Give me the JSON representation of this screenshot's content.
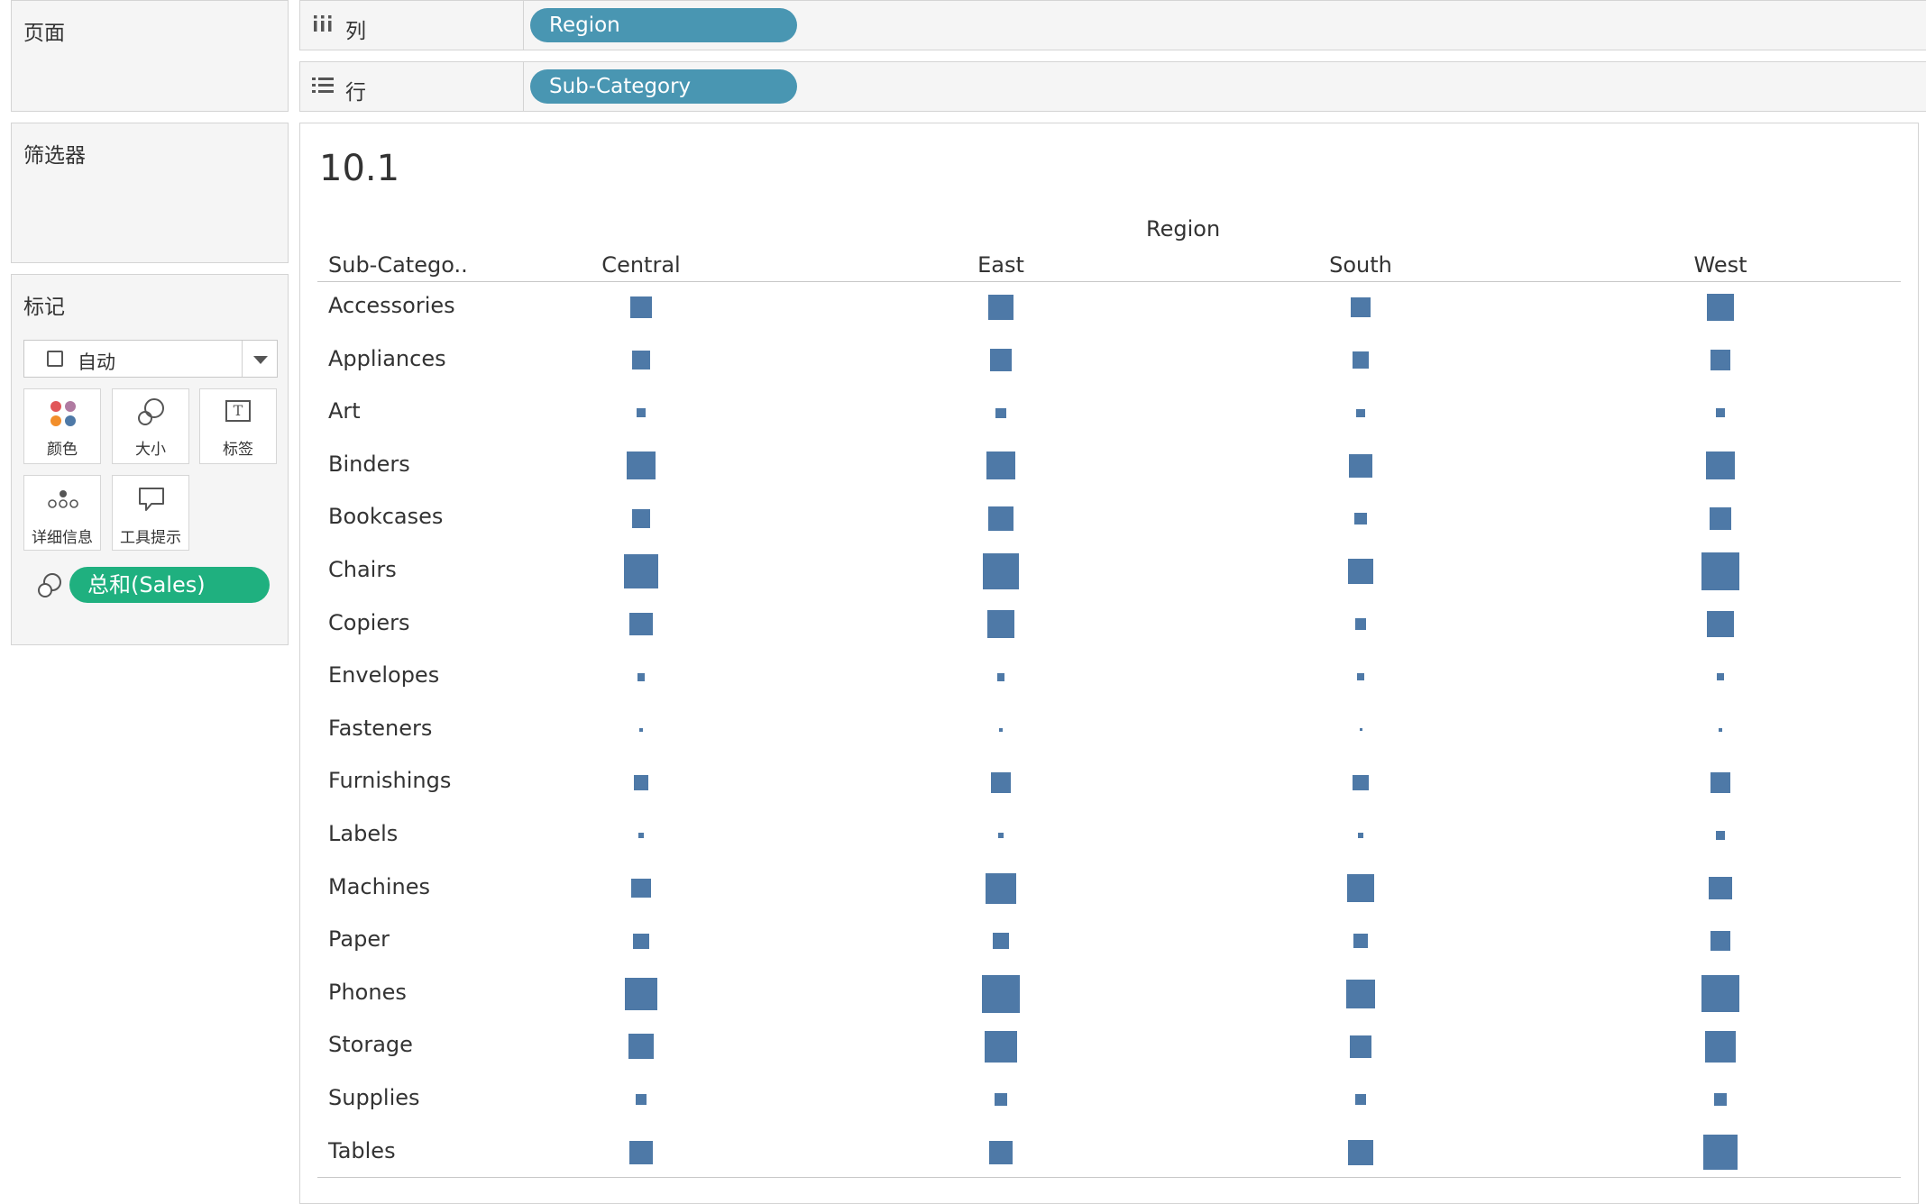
{
  "panels": {
    "pages": "页面",
    "filters": "筛选器",
    "marks": "标记"
  },
  "shelves": {
    "columns": {
      "label": "列",
      "pill": "Region"
    },
    "rows": {
      "label": "行",
      "pill": "Sub-Category"
    }
  },
  "marks_card": {
    "mark_type": "自动",
    "tiles": {
      "color": "颜色",
      "size": "大小",
      "label": "标签",
      "detail": "详细信息",
      "tooltip": "工具提示"
    },
    "size_field": "总和(Sales)"
  },
  "view": {
    "title": "10.1",
    "column_field": "Region",
    "row_header": "Sub-Catego..",
    "columns": [
      "Central",
      "East",
      "South",
      "West"
    ]
  },
  "chart_data": {
    "type": "table",
    "mark": "square",
    "size_by": "SUM(Sales)",
    "title": "10.1",
    "column_header": "Region",
    "row_header": "Sub-Catego..",
    "categories": [
      "Accessories",
      "Appliances",
      "Art",
      "Binders",
      "Bookcases",
      "Chairs",
      "Copiers",
      "Envelopes",
      "Fasteners",
      "Furnishings",
      "Labels",
      "Machines",
      "Paper",
      "Phones",
      "Storage",
      "Supplies",
      "Tables"
    ],
    "series": [
      {
        "name": "Central",
        "values": [
          34000,
          24000,
          5800,
          57000,
          24000,
          86000,
          37000,
          4600,
          800,
          16000,
          2500,
          26000,
          17500,
          73000,
          45000,
          8000,
          39000
        ]
      },
      {
        "name": "East",
        "values": [
          45000,
          34000,
          7500,
          56000,
          43000,
          97000,
          54000,
          4400,
          900,
          30000,
          2200,
          67000,
          20000,
          100000,
          72000,
          11500,
          39000
        ]
      },
      {
        "name": "South",
        "values": [
          27000,
          19500,
          4700,
          38000,
          10900,
          45000,
          9300,
          3400,
          500,
          17000,
          2300,
          54000,
          14000,
          58000,
          35000,
          8300,
          45000
        ]
      },
      {
        "name": "West",
        "values": [
          55000,
          30000,
          6300,
          56000,
          36000,
          102000,
          49000,
          4100,
          900,
          30000,
          5000,
          37000,
          28000,
          99000,
          70000,
          10000,
          85000
        ]
      }
    ]
  }
}
